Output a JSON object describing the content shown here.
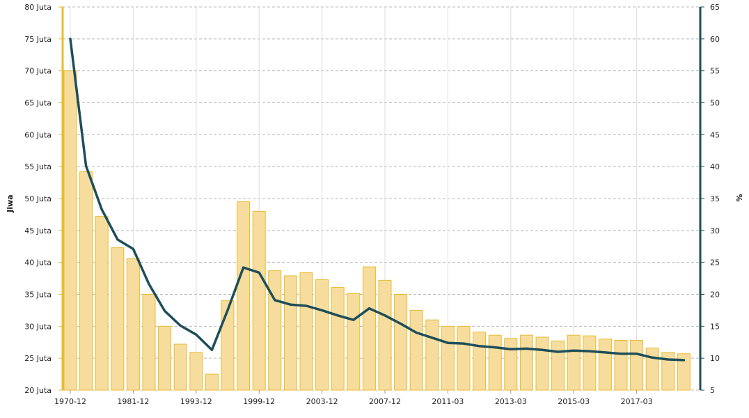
{
  "chart_data": {
    "type": "bar+line",
    "y_left": {
      "label": "Jiwa",
      "min": 20,
      "max": 80,
      "ticks": [
        "20 Juta",
        "25 Juta",
        "30 Juta",
        "35 Juta",
        "40 Juta",
        "45 Juta",
        "50 Juta",
        "55 Juta",
        "60 Juta",
        "65 Juta",
        "70 Juta",
        "75 Juta",
        "80 Juta"
      ]
    },
    "y_right": {
      "label": "%",
      "min": 5,
      "max": 65,
      "ticks": [
        "5",
        "10",
        "15",
        "20",
        "25",
        "30",
        "35",
        "40",
        "45",
        "50",
        "55",
        "60",
        "65"
      ]
    },
    "x_tick_labels": [
      "1970-12",
      "1981-12",
      "1993-12",
      "1999-12",
      "2003-12",
      "2007-12",
      "2011-03",
      "2013-03",
      "2015-03",
      "2017-03"
    ],
    "x_tick_label_indices": [
      0,
      4,
      8,
      12,
      16,
      20,
      24,
      28,
      32,
      36
    ],
    "bars_population_juta": [
      70.0,
      54.2,
      47.2,
      42.3,
      40.6,
      35.0,
      30.0,
      27.2,
      25.9,
      22.5,
      34.0,
      49.5,
      48.0,
      38.7,
      37.9,
      38.4,
      37.3,
      36.1,
      35.1,
      39.3,
      37.2,
      35.0,
      32.5,
      31.0,
      30.0,
      30.0,
      29.1,
      28.6,
      28.1,
      28.6,
      28.3,
      27.7,
      28.6,
      28.5,
      28.0,
      27.8,
      27.8,
      26.6,
      25.9,
      25.7
    ],
    "line_percentage": [
      60.0,
      40.1,
      33.3,
      28.6,
      27.1,
      21.6,
      17.4,
      15.1,
      13.7,
      11.3,
      17.5,
      24.2,
      23.4,
      19.1,
      18.4,
      18.2,
      17.5,
      16.7,
      16.0,
      17.8,
      16.7,
      15.4,
      14.0,
      13.2,
      12.4,
      12.3,
      11.9,
      11.7,
      11.4,
      11.5,
      11.3,
      11.0,
      11.2,
      11.1,
      10.9,
      10.7,
      10.7,
      10.1,
      9.8,
      9.7
    ],
    "bar_fill": "#f7dd9d",
    "bar_stroke": "#e8bb33",
    "line_color": "#1e4e5a",
    "left_axis_color": "#e8bb33",
    "right_axis_color": "#1e4e5a",
    "grid": true,
    "legend": "none"
  }
}
